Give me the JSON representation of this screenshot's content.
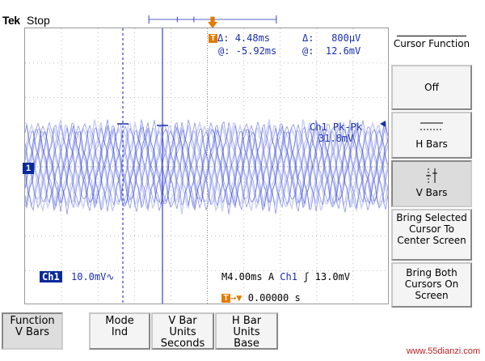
{
  "header": {
    "brand": "Tek",
    "status": "Stop"
  },
  "cursor_readout": {
    "delta_t": "4.48ms",
    "delta_v": "800µV",
    "at_t": "-5.92ms",
    "at_v": "12.6mV",
    "delta_sym": "Δ:",
    "at_sym": "@:"
  },
  "measurement": {
    "label": "Ch1 Pk-Pk",
    "value": "31.8mV"
  },
  "channel": {
    "name": "Ch1",
    "scale": "10.0mV",
    "coupling": "∿",
    "ground_marker": "1"
  },
  "timebase": {
    "text": "M4.00ms",
    "mode": "A",
    "trig_src": "Ch1",
    "slope": "ʃ",
    "level": "13.0mV"
  },
  "trigger_pos": {
    "value": "0.00000 s",
    "arrow": "→▼"
  },
  "side_menu": {
    "title": "Cursor Function",
    "items": [
      {
        "label": "Off",
        "selected": false
      },
      {
        "label": "H Bars",
        "selected": false
      },
      {
        "label": "V Bars",
        "selected": true
      },
      {
        "label": "Bring Selected Cursor To Center Screen",
        "selected": false
      },
      {
        "label": "Bring Both Cursors On Screen",
        "selected": false
      }
    ]
  },
  "bottom_menu": [
    {
      "line1": "Function",
      "line2": "V Bars",
      "line3": "",
      "selected": true
    },
    {
      "line1": "Mode",
      "line2": "Ind",
      "line3": "",
      "selected": false
    },
    {
      "line1": "V Bar",
      "line2": "Units",
      "line3": "Seconds",
      "selected": false
    },
    {
      "line1": "H Bar",
      "line2": "Units",
      "line3": "Base",
      "selected": false
    }
  ],
  "watermark": "www.55dianzi.com",
  "colors": {
    "trace": "#2f3fd6",
    "trace_light": "#b9c0f2",
    "accent": "#e57a00",
    "channel": "#0a2a9c"
  }
}
